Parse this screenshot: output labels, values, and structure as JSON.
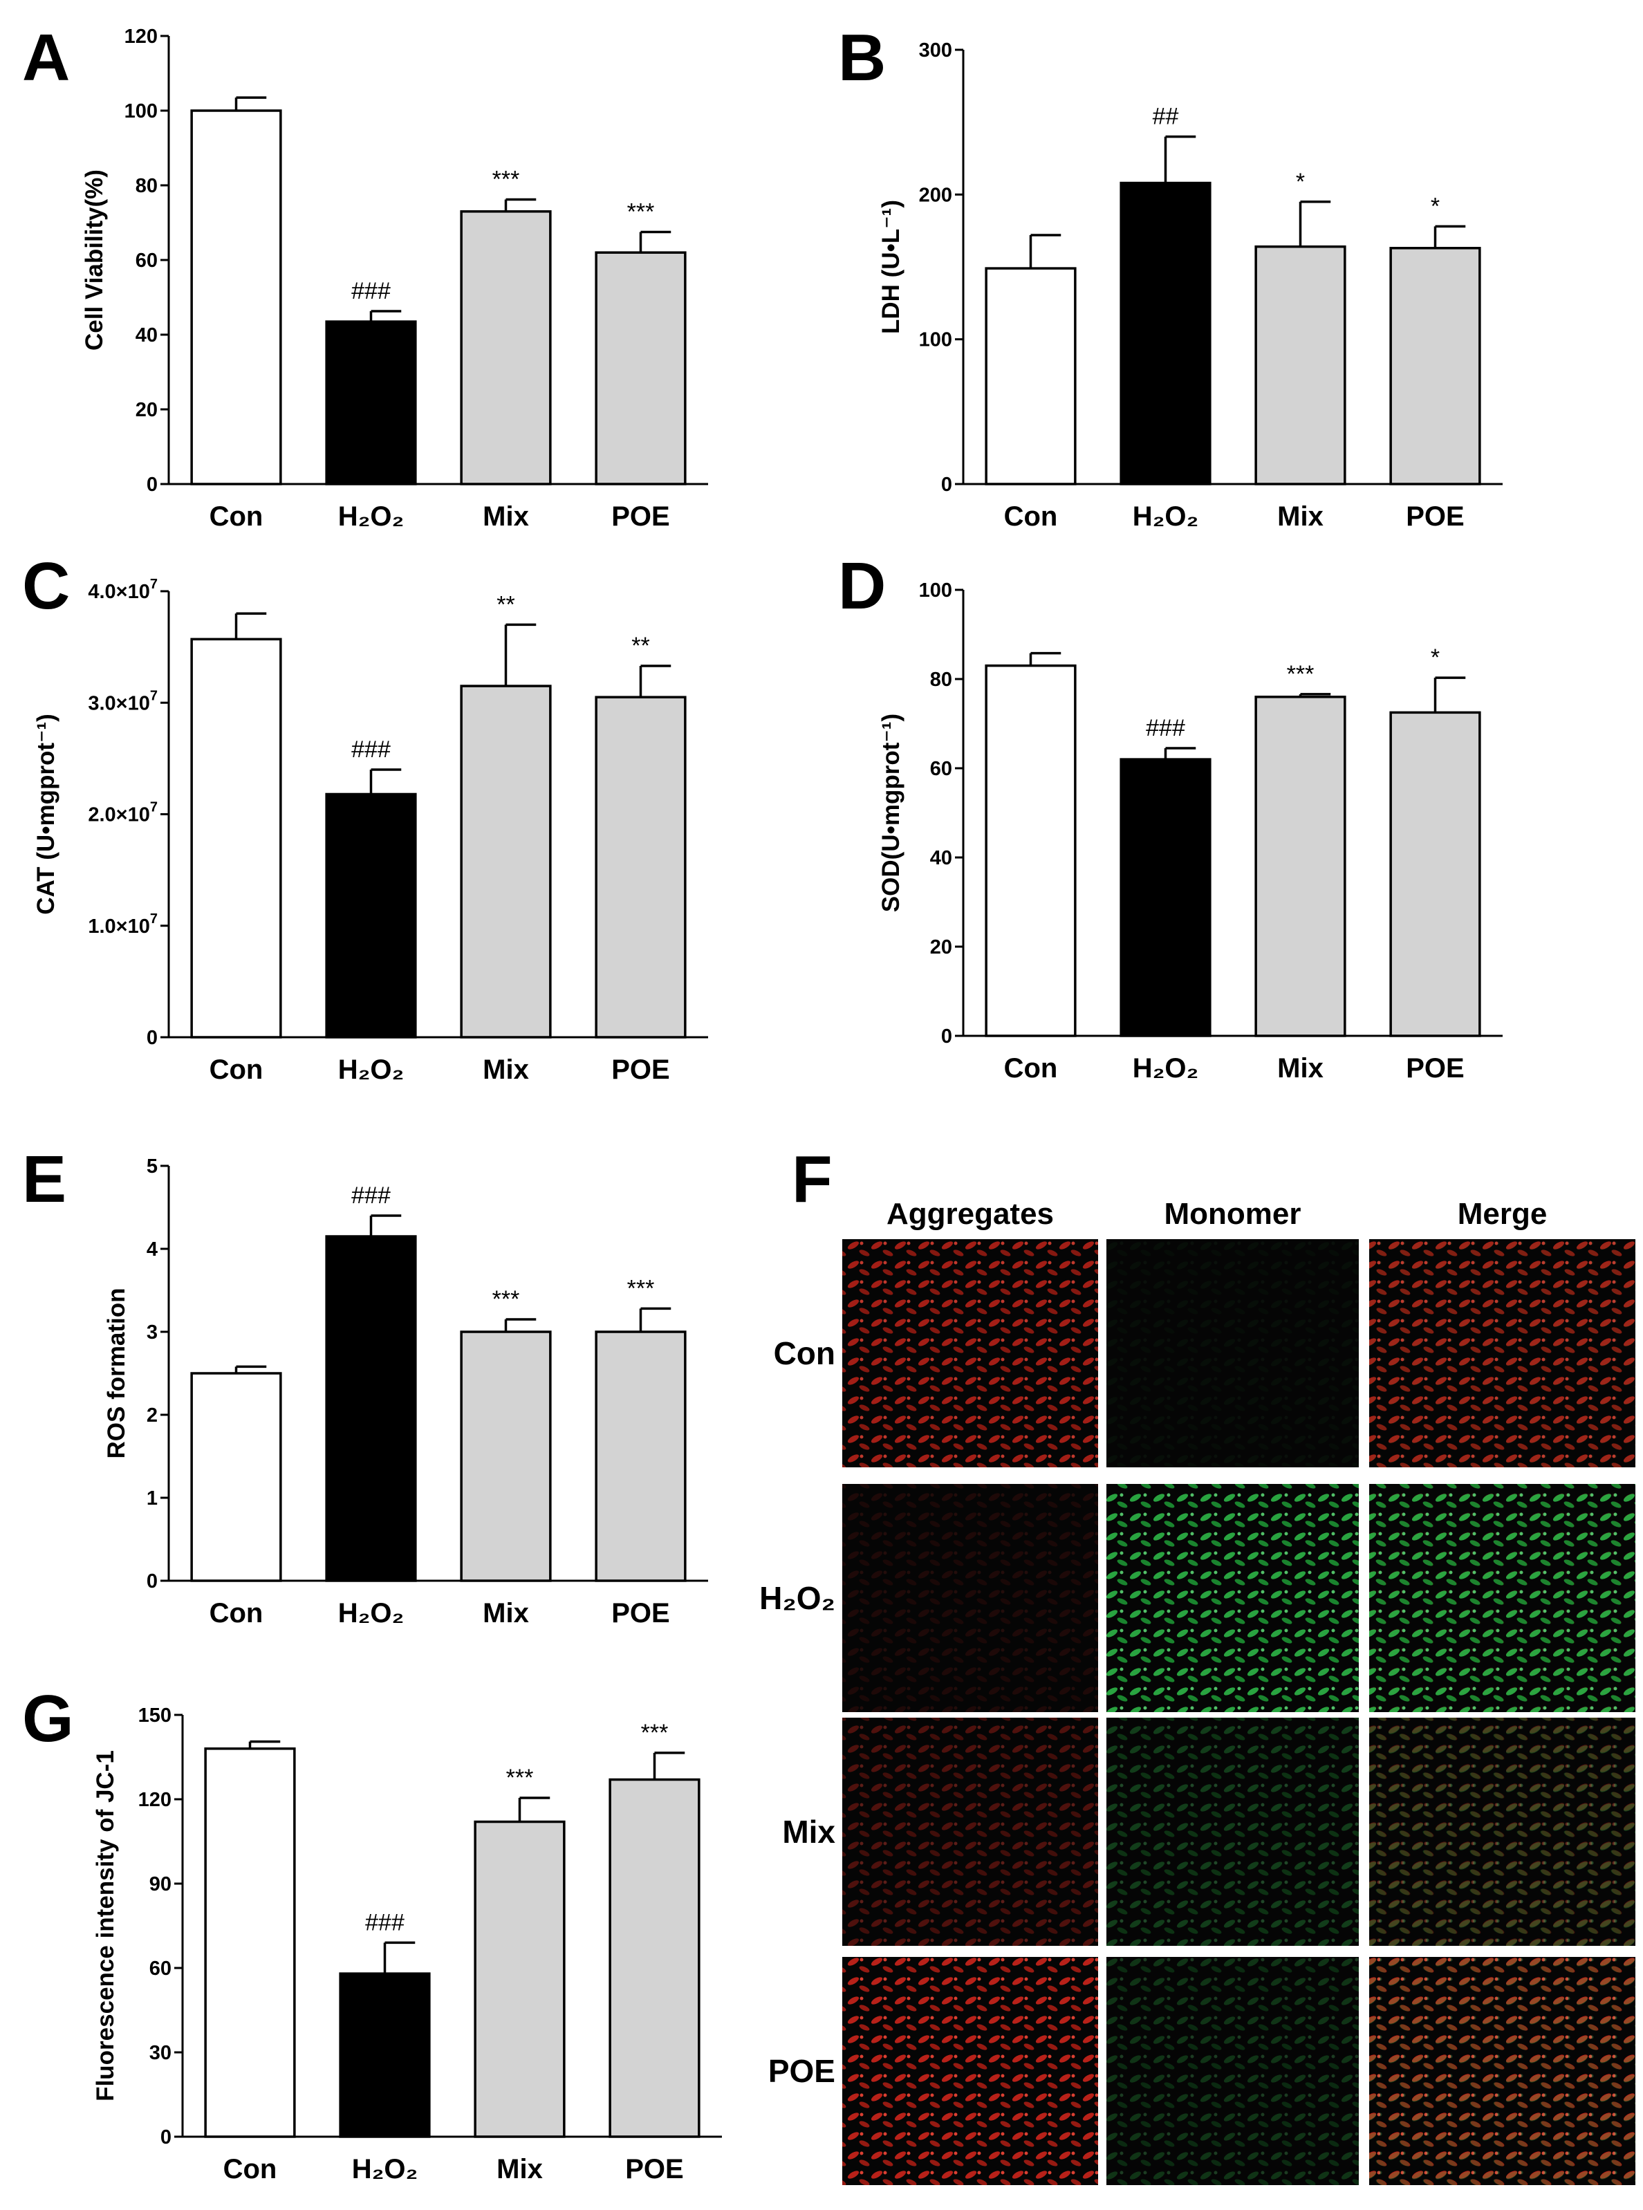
{
  "panel_labels": [
    "A",
    "B",
    "C",
    "D",
    "E",
    "F",
    "G"
  ],
  "chart_data": [
    {
      "id": "A",
      "type": "bar",
      "categories": [
        "Con",
        "H₂O₂",
        "Mix",
        "POE"
      ],
      "ylabel": "Cell Viability(%)",
      "ylim": [
        0,
        120
      ],
      "yticks": [
        0,
        20,
        40,
        60,
        80,
        100,
        120
      ],
      "ytick_labels": [
        "0",
        "20",
        "40",
        "60",
        "80",
        "100",
        "120"
      ],
      "values": [
        100,
        43.5,
        73,
        62
      ],
      "errors": [
        3.5,
        2.8,
        3.2,
        5.5
      ],
      "annotations": [
        "",
        "###",
        "***",
        "***"
      ],
      "bar_colors": [
        "#ffffff",
        "#000000",
        "#d3d3d3",
        "#d3d3d3"
      ]
    },
    {
      "id": "B",
      "type": "bar",
      "categories": [
        "Con",
        "H₂O₂",
        "Mix",
        "POE"
      ],
      "ylabel": "LDH (U•L⁻¹)",
      "ylim": [
        0,
        300
      ],
      "yticks": [
        0,
        100,
        200,
        300
      ],
      "ytick_labels": [
        "0",
        "100",
        "200",
        "300"
      ],
      "values": [
        149,
        208,
        164,
        163
      ],
      "errors": [
        23,
        32,
        31,
        15
      ],
      "annotations": [
        "",
        "##",
        "*",
        "*"
      ],
      "bar_colors": [
        "#ffffff",
        "#000000",
        "#d3d3d3",
        "#d3d3d3"
      ]
    },
    {
      "id": "C",
      "type": "bar",
      "categories": [
        "Con",
        "H₂O₂",
        "Mix",
        "POE"
      ],
      "ylabel": "CAT (U•mgprot⁻¹)",
      "ylim": [
        0,
        4.0
      ],
      "yticks": [
        0,
        1.0,
        2.0,
        3.0,
        4.0
      ],
      "ytick_labels": [
        "0",
        "1.0×10",
        "2.0×10",
        "3.0×10",
        "4.0×10"
      ],
      "ytick_exponent": "7",
      "values": [
        3.57,
        2.18,
        3.15,
        3.05
      ],
      "errors": [
        0.23,
        0.22,
        0.55,
        0.28
      ],
      "annotations": [
        "",
        "###",
        "**",
        "**"
      ],
      "bar_colors": [
        "#ffffff",
        "#000000",
        "#d3d3d3",
        "#d3d3d3"
      ]
    },
    {
      "id": "D",
      "type": "bar",
      "categories": [
        "Con",
        "H₂O₂",
        "Mix",
        "POE"
      ],
      "ylabel": "SOD(U•mgprot⁻¹)",
      "ylim": [
        0,
        100
      ],
      "yticks": [
        0,
        20,
        40,
        60,
        80,
        100
      ],
      "ytick_labels": [
        "0",
        "20",
        "40",
        "60",
        "80",
        "100"
      ],
      "values": [
        83,
        62,
        76,
        72.5
      ],
      "errors": [
        2.8,
        2.5,
        0.6,
        7.8
      ],
      "annotations": [
        "",
        "###",
        "***",
        "*"
      ],
      "bar_colors": [
        "#ffffff",
        "#000000",
        "#d3d3d3",
        "#d3d3d3"
      ]
    },
    {
      "id": "E",
      "type": "bar",
      "categories": [
        "Con",
        "H₂O₂",
        "Mix",
        "POE"
      ],
      "ylabel": "ROS formation",
      "ylim": [
        0,
        5
      ],
      "yticks": [
        0,
        1,
        2,
        3,
        4,
        5
      ],
      "ytick_labels": [
        "0",
        "1",
        "2",
        "3",
        "4",
        "5"
      ],
      "values": [
        2.5,
        4.15,
        3.0,
        3.0
      ],
      "errors": [
        0.08,
        0.25,
        0.15,
        0.28
      ],
      "annotations": [
        "",
        "###",
        "***",
        "***"
      ],
      "bar_colors": [
        "#ffffff",
        "#000000",
        "#d3d3d3",
        "#d3d3d3"
      ]
    },
    {
      "id": "G",
      "type": "bar",
      "categories": [
        "Con",
        "H₂O₂",
        "Mix",
        "POE"
      ],
      "ylabel": "Fluorescence intensity of JC-1",
      "ylim": [
        0,
        150
      ],
      "yticks": [
        0,
        30,
        60,
        90,
        120,
        150
      ],
      "ytick_labels": [
        "0",
        "30",
        "60",
        "90",
        "120",
        "150"
      ],
      "values": [
        138,
        58,
        112,
        127
      ],
      "errors": [
        2.5,
        11,
        8.5,
        9.5
      ],
      "annotations": [
        "",
        "###",
        "***",
        "***"
      ],
      "bar_colors": [
        "#ffffff",
        "#000000",
        "#d3d3d3",
        "#d3d3d3"
      ]
    }
  ],
  "micrograph_panel": {
    "columns": [
      "Aggregates",
      "Monomer",
      "Merge"
    ],
    "rows": [
      "Con",
      "H₂O₂",
      "Mix",
      "POE"
    ],
    "red_intensity": [
      [
        0.75,
        0.0,
        0.75
      ],
      [
        0.12,
        0.0,
        0.12
      ],
      [
        0.35,
        0.0,
        0.35
      ],
      [
        0.85,
        0.0,
        0.85
      ]
    ],
    "green_intensity": [
      [
        0.0,
        0.05,
        0.05
      ],
      [
        0.0,
        0.85,
        0.85
      ],
      [
        0.0,
        0.3,
        0.3
      ],
      [
        0.0,
        0.25,
        0.25
      ]
    ],
    "colors": {
      "red": "#d8261c",
      "green": "#2fbf4a"
    }
  }
}
